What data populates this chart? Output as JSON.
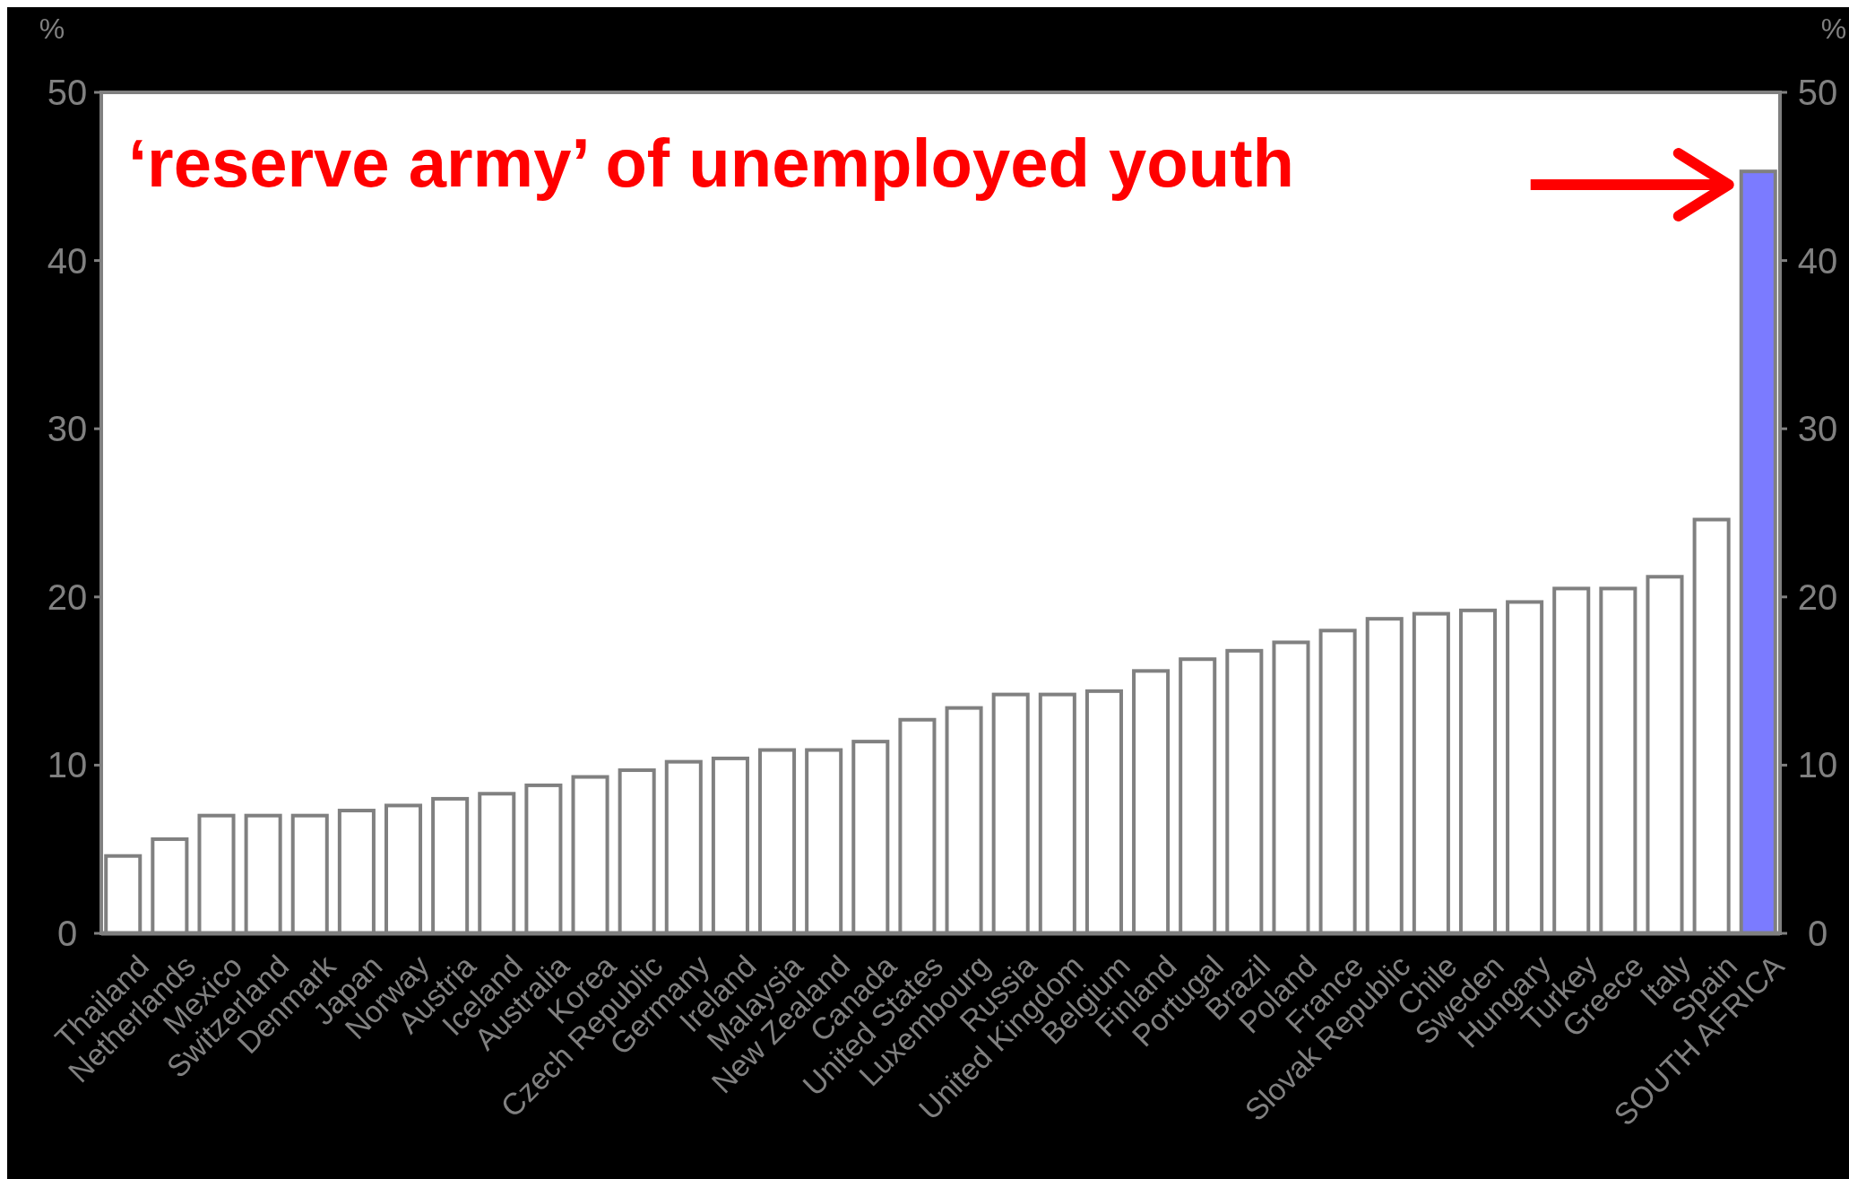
{
  "chart_data": {
    "type": "bar",
    "ylabel": "%",
    "y2label": "%",
    "categories": [
      "Thailand",
      "Netherlands",
      "Mexico",
      "Switzerland",
      "Denmark",
      "Japan",
      "Norway",
      "Austria",
      "Iceland",
      "Australia",
      "Korea",
      "Czech Republic",
      "Germany",
      "Ireland",
      "Malaysia",
      "New Zealand",
      "Canada",
      "United States",
      "Luxembourg",
      "Russia",
      "United Kingdom",
      "Belgium",
      "Finland",
      "Portugal",
      "Brazil",
      "Poland",
      "France",
      "Slovak Republic",
      "Chile",
      "Sweden",
      "Hungary",
      "Turkey",
      "Greece",
      "Italy",
      "Spain",
      "SOUTH AFRICA"
    ],
    "values": [
      4.6,
      5.6,
      7.0,
      7.0,
      7.0,
      7.3,
      7.6,
      8.0,
      8.3,
      8.8,
      9.3,
      9.7,
      10.2,
      10.4,
      10.9,
      10.9,
      11.4,
      12.7,
      13.4,
      14.2,
      14.2,
      14.4,
      15.6,
      16.3,
      16.8,
      17.3,
      18.0,
      18.7,
      19.0,
      19.2,
      19.7,
      20.5,
      20.5,
      21.2,
      24.6,
      45.3
    ],
    "colors": [
      "#ffffff",
      "#ffffff",
      "#ffffff",
      "#ffffff",
      "#ffffff",
      "#ffffff",
      "#ffffff",
      "#ffffff",
      "#ffffff",
      "#ffffff",
      "#ffffff",
      "#ffffff",
      "#ffffff",
      "#ffffff",
      "#ffffff",
      "#ffffff",
      "#ffffff",
      "#ffffff",
      "#ffffff",
      "#ffffff",
      "#ffffff",
      "#ffffff",
      "#ffffff",
      "#ffffff",
      "#ffffff",
      "#ffffff",
      "#ffffff",
      "#ffffff",
      "#ffffff",
      "#ffffff",
      "#ffffff",
      "#ffffff",
      "#ffffff",
      "#ffffff",
      "#ffffff",
      "#7b7bff"
    ],
    "ylim": [
      0,
      50
    ],
    "yticks": [
      0,
      10,
      20,
      30,
      40,
      50
    ],
    "y2lim": [
      0,
      50
    ],
    "y2ticks": [
      0,
      10,
      20,
      30,
      40,
      50
    ],
    "grid": false,
    "annotations": [
      "‘reserve army’ of unemployed youth"
    ]
  }
}
